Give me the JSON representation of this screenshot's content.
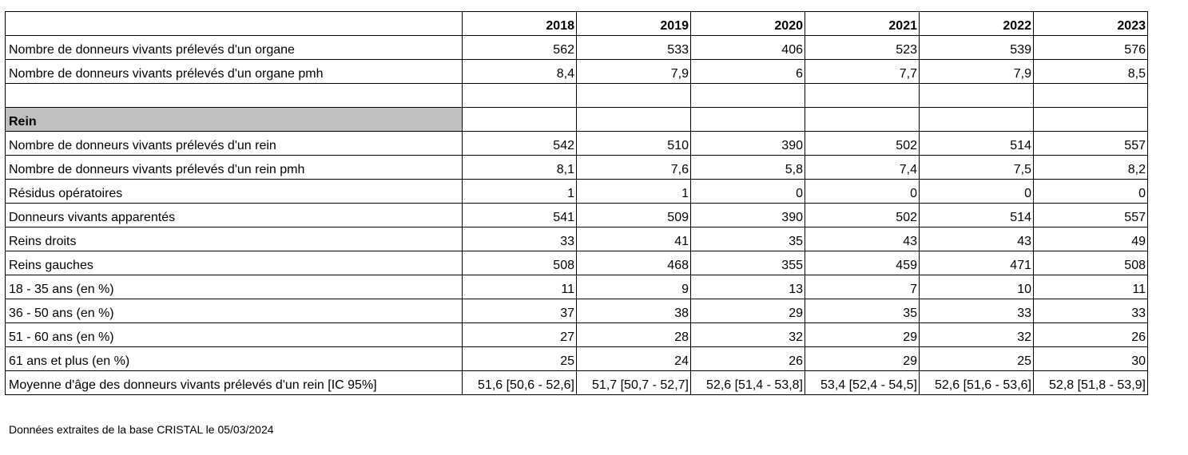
{
  "table": {
    "years": [
      "2018",
      "2019",
      "2020",
      "2021",
      "2022",
      "2023"
    ],
    "rows": [
      {
        "type": "data",
        "label": "Nombre de donneurs vivants prélevés d'un organe",
        "values": [
          "562",
          "533",
          "406",
          "523",
          "539",
          "576"
        ]
      },
      {
        "type": "data",
        "label": "Nombre de donneurs vivants prélevés d'un organe pmh",
        "values": [
          "8,4",
          "7,9",
          "6",
          "7,7",
          "7,9",
          "8,5"
        ]
      },
      {
        "type": "blank",
        "label": "",
        "values": [
          "",
          "",
          "",
          "",
          "",
          ""
        ]
      },
      {
        "type": "section",
        "label": "Rein",
        "values": [
          "",
          "",
          "",
          "",
          "",
          ""
        ]
      },
      {
        "type": "data",
        "label": "Nombre de donneurs vivants prélevés d'un rein",
        "values": [
          "542",
          "510",
          "390",
          "502",
          "514",
          "557"
        ]
      },
      {
        "type": "data",
        "label": "Nombre de donneurs vivants prélevés d'un rein pmh",
        "values": [
          "8,1",
          "7,6",
          "5,8",
          "7,4",
          "7,5",
          "8,2"
        ]
      },
      {
        "type": "data",
        "label": "Résidus opératoires",
        "values": [
          "1",
          "1",
          "0",
          "0",
          "0",
          "0"
        ]
      },
      {
        "type": "data",
        "label": "Donneurs vivants apparentés",
        "values": [
          "541",
          "509",
          "390",
          "502",
          "514",
          "557"
        ]
      },
      {
        "type": "data",
        "label": "Reins droits",
        "values": [
          "33",
          "41",
          "35",
          "43",
          "43",
          "49"
        ]
      },
      {
        "type": "data",
        "label": "Reins gauches",
        "values": [
          "508",
          "468",
          "355",
          "459",
          "471",
          "508"
        ]
      },
      {
        "type": "data",
        "label": "18 - 35 ans (en %)",
        "values": [
          "11",
          "9",
          "13",
          "7",
          "10",
          "11"
        ]
      },
      {
        "type": "data",
        "label": "36 - 50 ans (en %)",
        "values": [
          "37",
          "38",
          "29",
          "35",
          "33",
          "33"
        ]
      },
      {
        "type": "data",
        "label": "51 - 60 ans (en %)",
        "values": [
          "27",
          "28",
          "32",
          "29",
          "32",
          "26"
        ]
      },
      {
        "type": "data",
        "label": "61 ans et plus (en %)",
        "values": [
          "25",
          "24",
          "26",
          "29",
          "25",
          "30"
        ]
      },
      {
        "type": "data",
        "label": "Moyenne d'âge des donneurs vivants prélevés d'un rein [IC 95%]",
        "values": [
          "51,6 [50,6 - 52,6]",
          "51,7 [50,7 - 52,7]",
          "52,6 [51,4 - 53,8]",
          "53,4 [52,4 - 54,5]",
          "52,6 [51,6 - 53,6]",
          "52,8 [51,8 - 53,9]"
        ]
      }
    ]
  },
  "footnote": "Données extraites de la base CRISTAL le 05/03/2024",
  "colors": {
    "section_fill": "#c0c0c0",
    "border": "#000000"
  }
}
